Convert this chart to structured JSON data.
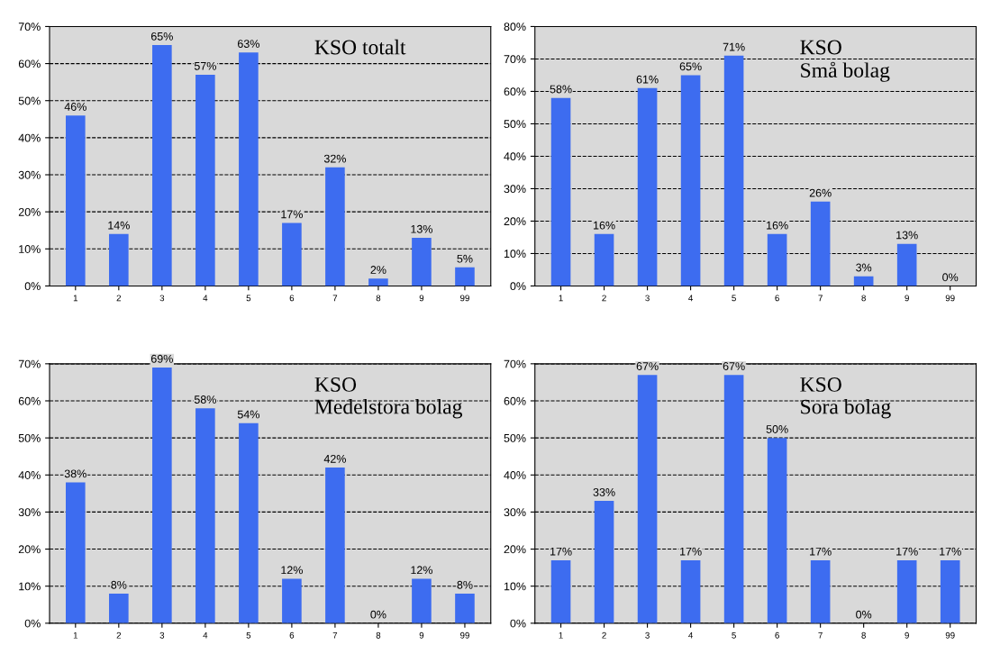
{
  "chart_data": [
    {
      "type": "bar",
      "title": "KSO totalt",
      "categories": [
        "1",
        "2",
        "3",
        "4",
        "5",
        "6",
        "7",
        "8",
        "9",
        "99"
      ],
      "values": [
        46,
        14,
        65,
        57,
        63,
        17,
        32,
        2,
        13,
        5
      ],
      "value_labels": [
        "46%",
        "14%",
        "65%",
        "57%",
        "63%",
        "17%",
        "32%",
        "2%",
        "13%",
        "5%"
      ],
      "color": "#3d6cf0",
      "ylim": [
        0,
        70
      ],
      "yticks": [
        {
          "value": 0,
          "label": "0%"
        },
        {
          "value": 10,
          "label": "10%"
        },
        {
          "value": 20,
          "label": "20%"
        },
        {
          "value": 30,
          "label": "30%"
        },
        {
          "value": 40,
          "label": "40%"
        },
        {
          "value": 50,
          "label": "50%"
        },
        {
          "value": 60,
          "label": "60%"
        },
        {
          "value": 70,
          "label": "70%"
        }
      ],
      "grid": "y",
      "line_style": "dashed"
    },
    {
      "type": "bar",
      "title": "KSO\nSmå bolag",
      "categories": [
        "1",
        "2",
        "3",
        "4",
        "5",
        "6",
        "7",
        "8",
        "9",
        "99"
      ],
      "values": [
        58,
        16,
        61,
        65,
        71,
        16,
        26,
        3,
        13,
        0
      ],
      "value_labels": [
        "58%",
        "16%",
        "61%",
        "65%",
        "71%",
        "16%",
        "26%",
        "3%",
        "13%",
        "0%"
      ],
      "color": "#3d6cf0",
      "ylim": [
        0,
        80
      ],
      "yticks": [
        {
          "value": 0,
          "label": "0%"
        },
        {
          "value": 10,
          "label": "10%"
        },
        {
          "value": 20,
          "label": "20%"
        },
        {
          "value": 30,
          "label": "30%"
        },
        {
          "value": 40,
          "label": "40%"
        },
        {
          "value": 50,
          "label": "50%"
        },
        {
          "value": 60,
          "label": "60%"
        },
        {
          "value": 70,
          "label": "70%"
        },
        {
          "value": 80,
          "label": "80%"
        }
      ],
      "grid": "y",
      "line_style": "dashed"
    },
    {
      "type": "bar",
      "title": "KSO\nMedelstora bolag",
      "categories": [
        "1",
        "2",
        "3",
        "4",
        "5",
        "6",
        "7",
        "8",
        "9",
        "99"
      ],
      "values": [
        38,
        8,
        69,
        58,
        54,
        12,
        42,
        0,
        12,
        8
      ],
      "value_labels": [
        "38%",
        "8%",
        "69%",
        "58%",
        "54%",
        "12%",
        "42%",
        "0%",
        "12%",
        "8%"
      ],
      "color": "#3d6cf0",
      "ylim": [
        0,
        70
      ],
      "yticks": [
        {
          "value": 0,
          "label": "0%"
        },
        {
          "value": 10,
          "label": "10%"
        },
        {
          "value": 20,
          "label": "20%"
        },
        {
          "value": 30,
          "label": "30%"
        },
        {
          "value": 40,
          "label": "40%"
        },
        {
          "value": 50,
          "label": "50%"
        },
        {
          "value": 60,
          "label": "60%"
        },
        {
          "value": 70,
          "label": "70%"
        }
      ],
      "grid": "y",
      "line_style": "dashed"
    },
    {
      "type": "bar",
      "title": "KSO\nSora bolag",
      "categories": [
        "1",
        "2",
        "3",
        "4",
        "5",
        "6",
        "7",
        "8",
        "9",
        "99"
      ],
      "values": [
        17,
        33,
        67,
        17,
        67,
        50,
        17,
        0,
        17,
        17
      ],
      "value_labels": [
        "17%",
        "33%",
        "67%",
        "17%",
        "67%",
        "50%",
        "17%",
        "0%",
        "17%",
        "17%"
      ],
      "color": "#3d6cf0",
      "ylim": [
        0,
        70
      ],
      "yticks": [
        {
          "value": 0,
          "label": "0%"
        },
        {
          "value": 10,
          "label": "10%"
        },
        {
          "value": 20,
          "label": "20%"
        },
        {
          "value": 30,
          "label": "30%"
        },
        {
          "value": 40,
          "label": "40%"
        },
        {
          "value": 50,
          "label": "50%"
        },
        {
          "value": 60,
          "label": "60%"
        },
        {
          "value": 70,
          "label": "70%"
        }
      ],
      "grid": "y",
      "line_style": "dashed"
    }
  ]
}
